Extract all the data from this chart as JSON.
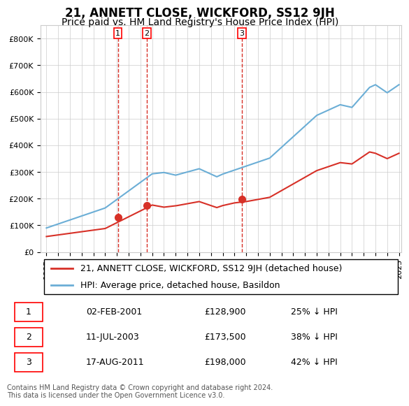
{
  "title": "21, ANNETT CLOSE, WICKFORD, SS12 9JH",
  "subtitle": "Price paid vs. HM Land Registry's House Price Index (HPI)",
  "ylabel": "",
  "ylim": [
    0,
    850000
  ],
  "yticks": [
    0,
    100000,
    200000,
    300000,
    400000,
    500000,
    600000,
    700000,
    800000
  ],
  "ytick_labels": [
    "£0",
    "£100K",
    "£200K",
    "£300K",
    "£400K",
    "£500K",
    "£600K",
    "£700K",
    "£800K"
  ],
  "x_start_year": 1995,
  "x_end_year": 2025,
  "hpi_color": "#6baed6",
  "price_color": "#d73027",
  "vline_color": "#d73027",
  "sale_dates": [
    2001.09,
    2003.53,
    2011.63
  ],
  "sale_prices": [
    128900,
    173500,
    198000
  ],
  "sale_labels": [
    "1",
    "2",
    "3"
  ],
  "legend_label_red": "21, ANNETT CLOSE, WICKFORD, SS12 9JH (detached house)",
  "legend_label_blue": "HPI: Average price, detached house, Basildon",
  "table_rows": [
    [
      "1",
      "02-FEB-2001",
      "£128,900",
      "25% ↓ HPI"
    ],
    [
      "2",
      "11-JUL-2003",
      "£173,500",
      "38% ↓ HPI"
    ],
    [
      "3",
      "17-AUG-2011",
      "£198,000",
      "42% ↓ HPI"
    ]
  ],
  "footer": "Contains HM Land Registry data © Crown copyright and database right 2024.\nThis data is licensed under the Open Government Licence v3.0.",
  "background_color": "#ffffff",
  "grid_color": "#cccccc",
  "title_fontsize": 12,
  "subtitle_fontsize": 10,
  "tick_fontsize": 8,
  "legend_fontsize": 9
}
